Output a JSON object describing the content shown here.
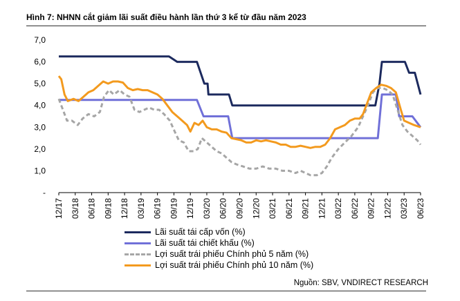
{
  "title": "Hình 7: NHNN cắt giảm lãi suất điều hành lần thứ 3 kể từ đầu năm 2023",
  "source": "Nguồn: SBV, VNDIRECT RESEARCH",
  "chart_data": {
    "type": "line",
    "title": "Hình 7: NHNN cắt giảm lãi suất điều hành lần thứ 3 kể từ đầu năm 2023",
    "xlabel": "",
    "ylabel": "",
    "ylim": [
      0,
      7
    ],
    "y_ticks": [
      "-",
      "1,0",
      "2,0",
      "3,0",
      "4,0",
      "5,0",
      "6,0",
      "7,0"
    ],
    "x_tick_labels": [
      "12/17",
      "03/18",
      "06/18",
      "09/18",
      "12/18",
      "03/19",
      "06/19",
      "09/19",
      "12/19",
      "03/20",
      "06/20",
      "09/20",
      "12/20",
      "03/21",
      "06/21",
      "09/21",
      "12/21",
      "03/22",
      "06/22",
      "09/22",
      "12/22",
      "03/23",
      "06/23"
    ],
    "grid": false,
    "legend_position": "bottom",
    "series": [
      {
        "name": "Lãi suất tái cấp vốn (%)",
        "color": "#1c2a5e",
        "style": "solid",
        "points": [
          [
            0,
            6.25
          ],
          [
            6.7,
            6.25
          ],
          [
            7.2,
            6.0
          ],
          [
            8.4,
            6.0
          ],
          [
            8.85,
            5.0
          ],
          [
            9.05,
            5.0
          ],
          [
            9.1,
            4.5
          ],
          [
            10.35,
            4.5
          ],
          [
            10.55,
            4.0
          ],
          [
            19.25,
            4.0
          ],
          [
            19.5,
            5.0
          ],
          [
            19.65,
            6.0
          ],
          [
            21.05,
            6.0
          ],
          [
            21.3,
            5.5
          ],
          [
            21.65,
            5.5
          ],
          [
            22.0,
            4.5
          ]
        ]
      },
      {
        "name": "Lãi suất tái chiết khấu (%)",
        "color": "#7070d8",
        "style": "solid",
        "points": [
          [
            0,
            4.25
          ],
          [
            8.4,
            4.25
          ],
          [
            8.8,
            3.5
          ],
          [
            10.3,
            3.5
          ],
          [
            10.55,
            2.5
          ],
          [
            19.4,
            2.5
          ],
          [
            19.65,
            4.5
          ],
          [
            20.5,
            4.5
          ],
          [
            20.7,
            3.5
          ],
          [
            21.5,
            3.5
          ],
          [
            22.0,
            3.0
          ]
        ]
      },
      {
        "name": "Lợi suất trái phiếu Chính phủ 5 năm (%)",
        "color": "#a6a6a6",
        "style": "dashed",
        "points": [
          [
            0,
            4.3
          ],
          [
            0.2,
            3.9
          ],
          [
            0.5,
            3.3
          ],
          [
            0.8,
            3.3
          ],
          [
            1.15,
            3.1
          ],
          [
            1.45,
            3.4
          ],
          [
            1.8,
            3.6
          ],
          [
            2.15,
            3.5
          ],
          [
            2.5,
            3.7
          ],
          [
            2.75,
            4.4
          ],
          [
            3.05,
            4.7
          ],
          [
            3.35,
            4.5
          ],
          [
            3.7,
            4.7
          ],
          [
            4.0,
            4.5
          ],
          [
            4.3,
            4.4
          ],
          [
            4.6,
            3.8
          ],
          [
            4.9,
            3.7
          ],
          [
            5.2,
            3.8
          ],
          [
            5.5,
            3.9
          ],
          [
            5.8,
            3.8
          ],
          [
            6.1,
            3.8
          ],
          [
            6.4,
            3.6
          ],
          [
            6.75,
            3.3
          ],
          [
            7.05,
            2.8
          ],
          [
            7.3,
            2.4
          ],
          [
            7.6,
            2.3
          ],
          [
            7.9,
            1.9
          ],
          [
            8.2,
            1.9
          ],
          [
            8.45,
            2.0
          ],
          [
            8.7,
            2.5
          ],
          [
            9.0,
            2.3
          ],
          [
            9.3,
            2.1
          ],
          [
            9.6,
            1.9
          ],
          [
            9.9,
            1.8
          ],
          [
            10.2,
            1.6
          ],
          [
            10.5,
            1.4
          ],
          [
            10.8,
            1.3
          ],
          [
            11.2,
            1.2
          ],
          [
            11.6,
            1.1
          ],
          [
            12.0,
            1.1
          ],
          [
            12.4,
            1.2
          ],
          [
            12.8,
            1.1
          ],
          [
            13.2,
            1.1
          ],
          [
            13.6,
            1.0
          ],
          [
            14.0,
            1.0
          ],
          [
            14.4,
            0.9
          ],
          [
            14.7,
            1.0
          ],
          [
            15.0,
            0.9
          ],
          [
            15.3,
            0.8
          ],
          [
            15.7,
            0.8
          ],
          [
            16.0,
            0.9
          ],
          [
            16.3,
            1.2
          ],
          [
            16.6,
            1.6
          ],
          [
            17.0,
            2.0
          ],
          [
            17.4,
            2.3
          ],
          [
            17.8,
            2.6
          ],
          [
            18.2,
            3.0
          ],
          [
            18.5,
            3.5
          ],
          [
            18.8,
            4.0
          ],
          [
            19.1,
            4.6
          ],
          [
            19.4,
            4.8
          ],
          [
            19.7,
            4.8
          ],
          [
            20.0,
            4.7
          ],
          [
            20.3,
            4.5
          ],
          [
            20.6,
            3.8
          ],
          [
            20.9,
            3.1
          ],
          [
            21.2,
            2.8
          ],
          [
            21.5,
            2.6
          ],
          [
            21.8,
            2.4
          ],
          [
            22.0,
            2.2
          ]
        ]
      },
      {
        "name": "Lợi suất trái phiếu Chính phủ 10 năm (%)",
        "color": "#f39a1e",
        "style": "solid",
        "points": [
          [
            0,
            5.35
          ],
          [
            0.15,
            5.2
          ],
          [
            0.35,
            4.5
          ],
          [
            0.55,
            4.2
          ],
          [
            0.9,
            4.3
          ],
          [
            1.2,
            4.2
          ],
          [
            1.5,
            4.4
          ],
          [
            1.8,
            4.6
          ],
          [
            2.1,
            4.7
          ],
          [
            2.4,
            4.9
          ],
          [
            2.7,
            5.1
          ],
          [
            3.0,
            5.0
          ],
          [
            3.3,
            5.1
          ],
          [
            3.6,
            5.1
          ],
          [
            3.9,
            5.05
          ],
          [
            4.2,
            4.8
          ],
          [
            4.5,
            4.7
          ],
          [
            4.8,
            4.75
          ],
          [
            5.1,
            4.7
          ],
          [
            5.4,
            4.7
          ],
          [
            5.7,
            4.6
          ],
          [
            6.0,
            4.5
          ],
          [
            6.3,
            4.3
          ],
          [
            6.6,
            4.0
          ],
          [
            6.9,
            3.7
          ],
          [
            7.2,
            3.5
          ],
          [
            7.5,
            3.3
          ],
          [
            7.8,
            3.1
          ],
          [
            8.0,
            2.8
          ],
          [
            8.25,
            3.2
          ],
          [
            8.5,
            3.1
          ],
          [
            8.75,
            3.3
          ],
          [
            9.0,
            3.0
          ],
          [
            9.3,
            2.9
          ],
          [
            9.6,
            2.9
          ],
          [
            9.9,
            2.8
          ],
          [
            10.2,
            2.75
          ],
          [
            10.5,
            2.5
          ],
          [
            10.8,
            2.45
          ],
          [
            11.1,
            2.4
          ],
          [
            11.4,
            2.3
          ],
          [
            11.7,
            2.3
          ],
          [
            12.0,
            2.4
          ],
          [
            12.3,
            2.35
          ],
          [
            12.6,
            2.4
          ],
          [
            12.9,
            2.35
          ],
          [
            13.2,
            2.3
          ],
          [
            13.5,
            2.2
          ],
          [
            13.8,
            2.2
          ],
          [
            14.1,
            2.1
          ],
          [
            14.4,
            2.1
          ],
          [
            14.7,
            2.15
          ],
          [
            15.0,
            2.1
          ],
          [
            15.3,
            2.05
          ],
          [
            15.6,
            2.1
          ],
          [
            15.9,
            2.1
          ],
          [
            16.2,
            2.2
          ],
          [
            16.5,
            2.5
          ],
          [
            16.8,
            2.9
          ],
          [
            17.1,
            3.0
          ],
          [
            17.4,
            3.1
          ],
          [
            17.7,
            3.3
          ],
          [
            18.0,
            3.4
          ],
          [
            18.3,
            3.4
          ],
          [
            18.5,
            3.6
          ],
          [
            18.8,
            4.2
          ],
          [
            19.0,
            4.6
          ],
          [
            19.3,
            4.8
          ],
          [
            19.6,
            4.95
          ],
          [
            19.9,
            4.9
          ],
          [
            20.2,
            4.8
          ],
          [
            20.5,
            4.6
          ],
          [
            20.8,
            3.8
          ],
          [
            21.0,
            3.3
          ],
          [
            21.3,
            3.2
          ],
          [
            21.6,
            3.1
          ],
          [
            22.0,
            3.0
          ]
        ]
      }
    ]
  }
}
